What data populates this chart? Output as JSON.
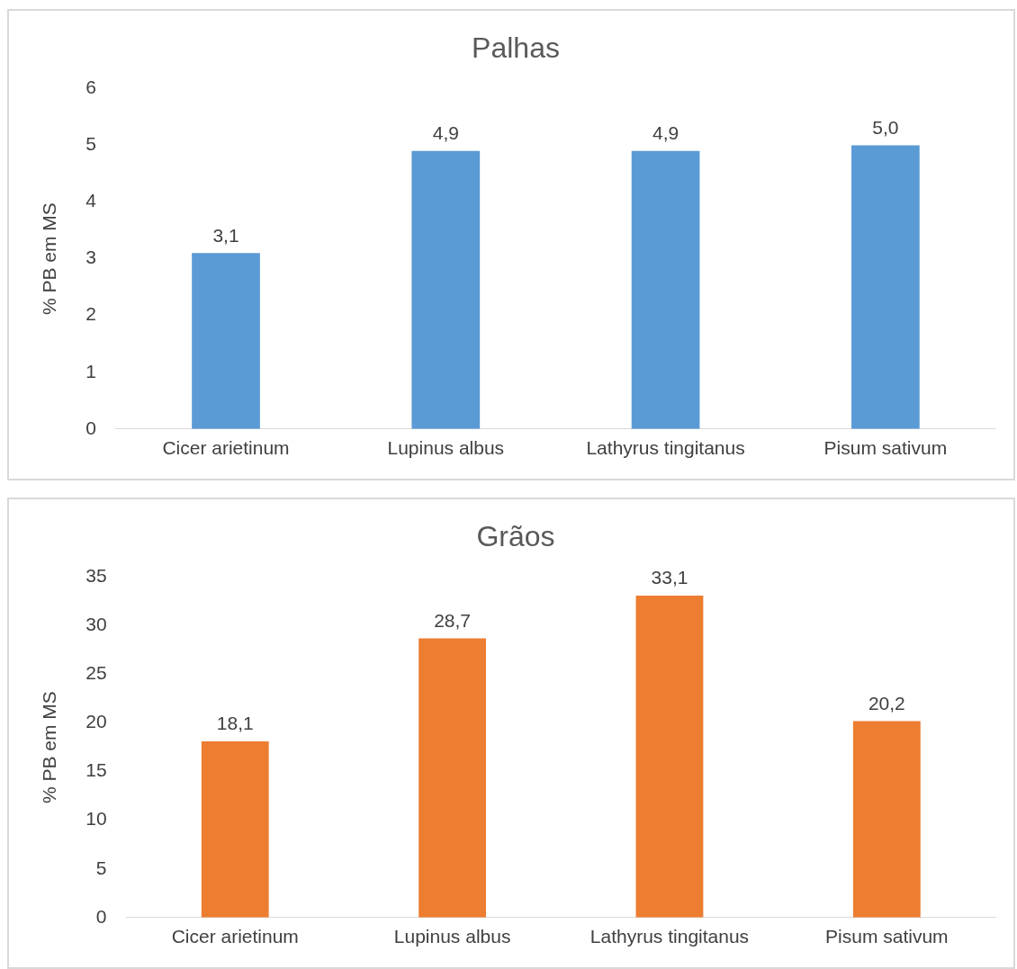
{
  "chart_data": [
    {
      "type": "bar",
      "title": "Palhas",
      "ylabel": "% PB em MS",
      "categories": [
        "Cicer arietinum",
        "Lupinus albus",
        "Lathyrus tingitanus",
        "Pisum sativum"
      ],
      "values": [
        3.1,
        4.9,
        4.9,
        5.0
      ],
      "value_labels": [
        "3,1",
        "4,9",
        "4,9",
        "5,0"
      ],
      "color": "#5b9bd5",
      "ylim": [
        0,
        6
      ],
      "yticks": [
        0,
        1,
        2,
        3,
        4,
        5,
        6
      ],
      "grid": false,
      "legend": false
    },
    {
      "type": "bar",
      "title": "Grãos",
      "ylabel": "% PB em MS",
      "categories": [
        "Cicer arietinum",
        "Lupinus albus",
        "Lathyrus tingitanus",
        "Pisum sativum"
      ],
      "values": [
        18.1,
        28.7,
        33.1,
        20.2
      ],
      "value_labels": [
        "18,1",
        "28,7",
        "33,1",
        "20,2"
      ],
      "color": "#ed7d31",
      "ylim": [
        0,
        35
      ],
      "yticks": [
        0,
        5,
        10,
        15,
        20,
        25,
        30,
        35
      ],
      "grid": false,
      "legend": false
    }
  ]
}
